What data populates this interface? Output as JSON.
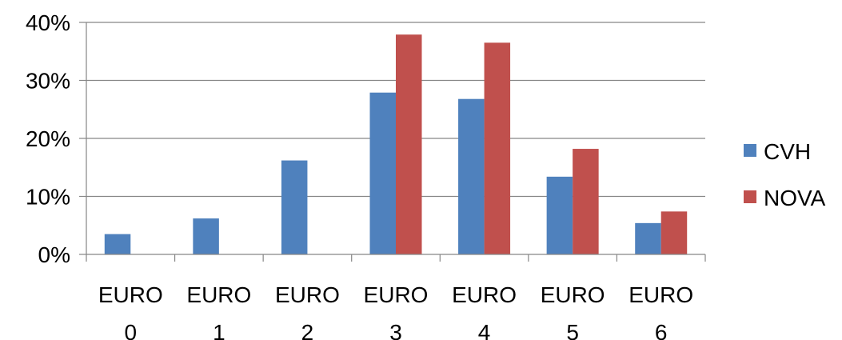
{
  "chart_data": {
    "type": "bar",
    "categories": [
      [
        "EURO",
        "0"
      ],
      [
        "EURO",
        "1"
      ],
      [
        "EURO",
        "2"
      ],
      [
        "EURO",
        "3"
      ],
      [
        "EURO",
        "4"
      ],
      [
        "EURO",
        "5"
      ],
      [
        "EURO",
        "6"
      ]
    ],
    "series": [
      {
        "name": "CVH",
        "color": "#4F81BD",
        "values": [
          3.5,
          6.2,
          16.2,
          27.9,
          26.8,
          13.4,
          5.4
        ]
      },
      {
        "name": "NOVA",
        "color": "#C0504D",
        "values": [
          null,
          null,
          null,
          37.9,
          36.5,
          18.2,
          7.4
        ]
      }
    ],
    "y_ticks": [
      "0%",
      "10%",
      "20%",
      "30%",
      "40%"
    ],
    "ylim": [
      0,
      40
    ],
    "grid": true,
    "legend": "right",
    "title": "",
    "xlabel": "",
    "ylabel": ""
  }
}
